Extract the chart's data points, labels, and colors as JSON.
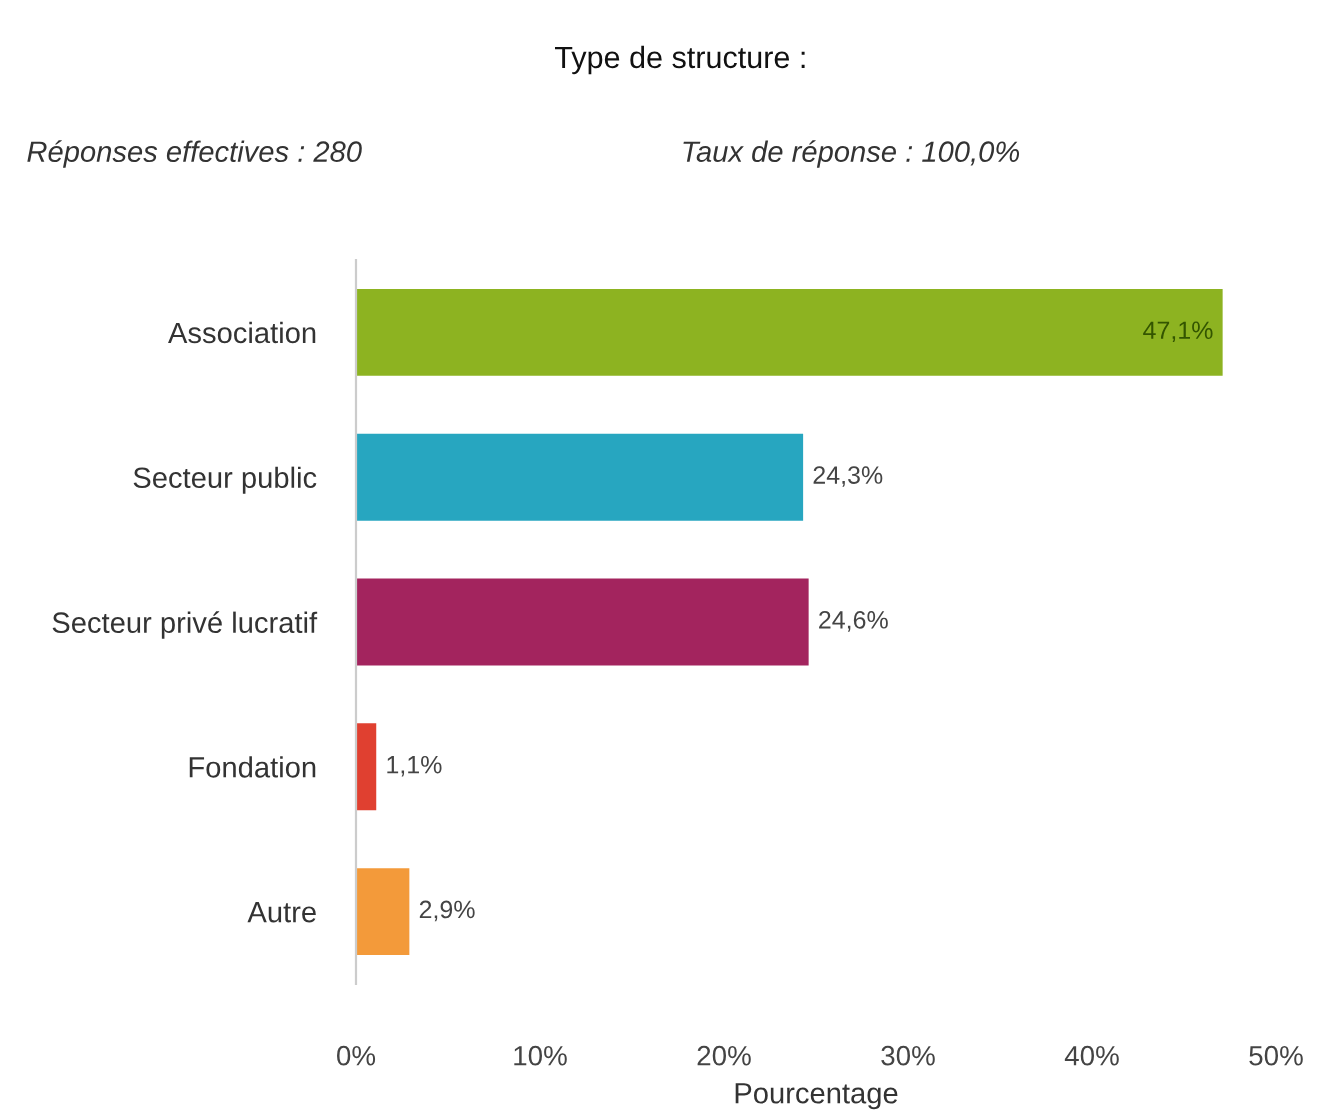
{
  "chart_data": {
    "type": "bar",
    "orientation": "horizontal",
    "title": "Type de structure :",
    "annotations": [
      "Réponses effectives : 280",
      "Taux de réponse : 100,0%"
    ],
    "categories": [
      "Association",
      "Secteur public",
      "Secteur privé lucratif",
      "Fondation",
      "Autre"
    ],
    "values": [
      47.1,
      24.3,
      24.6,
      1.1,
      2.9
    ],
    "colors": [
      "#8db321",
      "#27a6c0",
      "#a3245e",
      "#e04030",
      "#f39a3a"
    ],
    "value_labels": [
      "47,1%",
      "24,3%",
      "24,6%",
      "1,1%",
      "2,9%"
    ],
    "xlabel": "Pourcentage",
    "xlim": [
      0,
      50
    ],
    "xticks": [
      {
        "value": 0,
        "label": "0%"
      },
      {
        "value": 10,
        "label": "10%"
      },
      {
        "value": 20,
        "label": "20%"
      },
      {
        "value": 30,
        "label": "30%"
      },
      {
        "value": 40,
        "label": "40%"
      },
      {
        "value": 50,
        "label": "50%"
      }
    ],
    "grid": false
  }
}
